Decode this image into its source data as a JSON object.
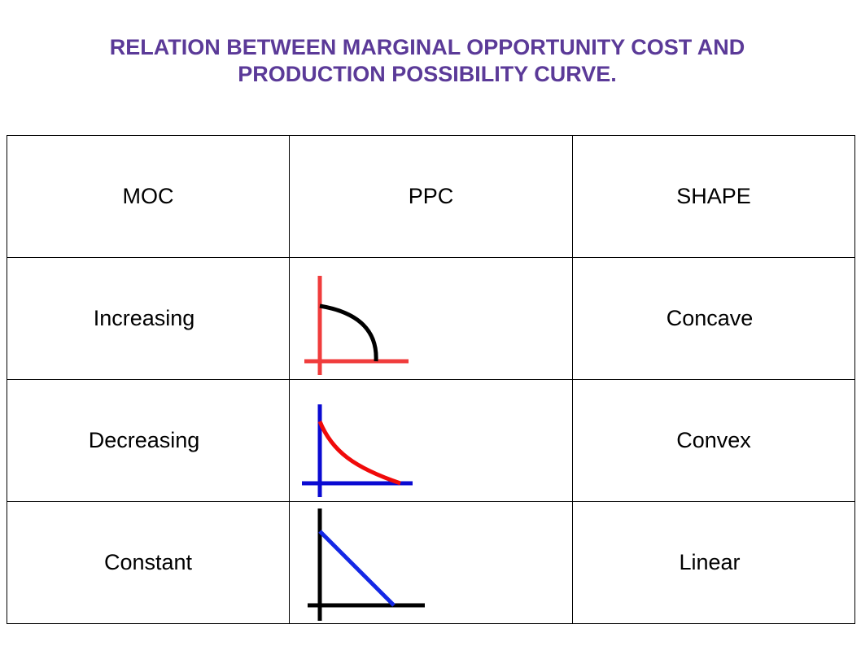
{
  "title": {
    "line1": "RELATION BETWEEN MARGINAL OPPORTUNITY COST AND",
    "line2": "PRODUCTION POSSIBILITY CURVE."
  },
  "table": {
    "headers": [
      "MOC",
      "PPC",
      "SHAPE"
    ],
    "rows": [
      {
        "moc": "Increasing",
        "ppc_curve": "concave-curve-icon",
        "shape": "Concave",
        "axis_color": "#f03c3c",
        "curve_color": "#000000"
      },
      {
        "moc": "Decreasing",
        "ppc_curve": "convex-curve-icon",
        "shape": "Convex",
        "axis_color": "#0a0ad2",
        "curve_color": "#f00a0a"
      },
      {
        "moc": "Constant",
        "ppc_curve": "linear-curve-icon",
        "shape": "Linear",
        "axis_color": "#000000",
        "curve_color": "#1428e6"
      }
    ]
  },
  "colors": {
    "title": "#5b3a98",
    "border": "#000000"
  }
}
